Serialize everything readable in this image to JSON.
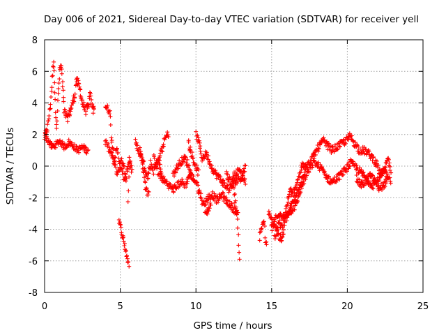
{
  "chart_data": {
    "type": "scatter",
    "title": "Day 006 of 2021, Sidereal Day-to-day VTEC variation (SDTVAR) for receiver yell",
    "xlabel": "GPS time / hours",
    "ylabel": "SDTVAR / TECUs",
    "xlim": [
      0,
      25
    ],
    "ylim": [
      -8,
      8
    ],
    "x_ticks": [
      "0",
      "5",
      "10",
      "15",
      "20",
      "25"
    ],
    "y_ticks": [
      "8",
      "6",
      "4",
      "2",
      "0",
      "-2",
      "-4",
      "-6",
      "-8"
    ],
    "grid": true,
    "marker": "+",
    "color": "#ff0000",
    "series": [
      {
        "name": "SDTVAR",
        "anchors": [
          [
            0.0,
            1.8
          ],
          [
            0.2,
            2.5
          ],
          [
            0.4,
            4.0
          ],
          [
            0.5,
            5.5
          ],
          [
            0.6,
            6.8
          ],
          [
            0.7,
            4.0
          ],
          [
            0.8,
            2.5
          ],
          [
            0.9,
            4.5
          ],
          [
            1.0,
            6.0
          ],
          [
            1.1,
            6.4
          ],
          [
            1.2,
            5.0
          ],
          [
            1.3,
            3.5
          ],
          [
            1.5,
            3.0
          ],
          [
            1.7,
            3.5
          ],
          [
            2.0,
            4.5
          ],
          [
            2.1,
            5.5
          ],
          [
            2.3,
            5.0
          ],
          [
            2.5,
            4.0
          ],
          [
            2.7,
            3.5
          ],
          [
            2.9,
            3.8
          ],
          [
            3.0,
            4.5
          ],
          [
            3.2,
            3.5
          ],
          [
            3.3,
            4.0
          ]
        ],
        "anchors_low": [
          [
            0.0,
            2.0
          ],
          [
            0.3,
            1.5
          ],
          [
            0.5,
            1.2
          ],
          [
            0.8,
            1.4
          ],
          [
            1.0,
            1.6
          ],
          [
            1.3,
            1.2
          ],
          [
            1.6,
            1.5
          ],
          [
            1.9,
            1.3
          ],
          [
            2.2,
            1.0
          ],
          [
            2.5,
            1.2
          ],
          [
            2.8,
            1.0
          ],
          [
            2.9,
            1.2
          ]
        ],
        "segments": [
          [
            [
              4.0,
              3.8
            ],
            [
              4.3,
              3.5
            ],
            [
              4.4,
              2.0
            ],
            [
              4.6,
              0.5
            ],
            [
              4.8,
              1.0
            ],
            [
              5.0,
              0.0
            ],
            [
              5.3,
              -1.0
            ],
            [
              5.6,
              0.5
            ],
            [
              5.8,
              -0.5
            ]
          ],
          [
            [
              4.0,
              1.5
            ],
            [
              4.3,
              1.0
            ],
            [
              4.5,
              0.5
            ],
            [
              4.8,
              -0.5
            ],
            [
              5.1,
              0.5
            ],
            [
              5.4,
              -1.0
            ]
          ],
          [
            [
              5.5,
              -2.2
            ],
            [
              5.6,
              0.0
            ],
            [
              5.7,
              0.8
            ]
          ],
          [
            [
              4.9,
              -3.5
            ],
            [
              5.1,
              -4.2
            ],
            [
              5.3,
              -5.0
            ],
            [
              5.5,
              -6.0
            ],
            [
              5.6,
              -6.3
            ]
          ],
          [
            [
              6.0,
              1.5
            ],
            [
              6.2,
              1.0
            ],
            [
              6.4,
              0.5
            ],
            [
              6.6,
              0.0
            ],
            [
              6.8,
              -0.8
            ],
            [
              7.0,
              0.2
            ],
            [
              7.2,
              -0.3
            ],
            [
              7.5,
              0.5
            ],
            [
              7.8,
              -1.0
            ]
          ],
          [
            [
              6.3,
              1.2
            ],
            [
              6.5,
              0.0
            ],
            [
              6.7,
              -1.5
            ],
            [
              6.9,
              -1.8
            ]
          ],
          [
            [
              7.2,
              0.5
            ],
            [
              7.4,
              0.0
            ],
            [
              7.6,
              0.5
            ],
            [
              7.8,
              1.2
            ],
            [
              8.0,
              1.8
            ],
            [
              8.2,
              2.1
            ]
          ],
          [
            [
              7.5,
              -0.5
            ],
            [
              8.0,
              -1.0
            ],
            [
              8.5,
              -1.5
            ],
            [
              9.0,
              -1.0
            ],
            [
              9.3,
              -1.2
            ],
            [
              9.6,
              -0.5
            ],
            [
              10.0,
              -1.0
            ],
            [
              10.3,
              -1.8
            ]
          ],
          [
            [
              8.5,
              -0.5
            ],
            [
              9.0,
              0.3
            ],
            [
              9.3,
              0.5
            ],
            [
              9.5,
              0.0
            ],
            [
              9.8,
              -0.8
            ]
          ],
          [
            [
              9.5,
              1.5
            ],
            [
              9.7,
              0.8
            ],
            [
              9.9,
              0.2
            ],
            [
              10.2,
              -0.5
            ]
          ],
          [
            [
              10.0,
              2.0
            ],
            [
              10.2,
              1.5
            ],
            [
              10.4,
              0.5
            ],
            [
              10.7,
              0.8
            ],
            [
              11.0,
              0.0
            ],
            [
              11.3,
              -0.5
            ],
            [
              11.6,
              -0.8
            ],
            [
              11.9,
              -1.2
            ],
            [
              12.2,
              -1.5
            ],
            [
              12.6,
              -1.0
            ],
            [
              13.0,
              -0.7
            ],
            [
              13.3,
              -1.0
            ]
          ],
          [
            [
              10.3,
              -1.8
            ],
            [
              10.5,
              -2.5
            ],
            [
              10.8,
              -2.0
            ],
            [
              11.1,
              -1.8
            ],
            [
              11.4,
              -2.2
            ],
            [
              11.7,
              -1.8
            ],
            [
              12.0,
              -2.2
            ],
            [
              12.3,
              -2.5
            ],
            [
              12.6,
              -2.8
            ],
            [
              12.8,
              -3.2
            ]
          ],
          [
            [
              10.6,
              -3.0
            ],
            [
              10.8,
              -2.8
            ],
            [
              11.0,
              -2.3
            ]
          ],
          [
            [
              12.0,
              -0.5
            ],
            [
              12.3,
              -1.0
            ],
            [
              12.6,
              -0.5
            ],
            [
              12.9,
              -0.2
            ],
            [
              13.1,
              -0.5
            ],
            [
              13.3,
              0.0
            ]
          ],
          [
            [
              12.5,
              -1.5
            ],
            [
              12.7,
              -3.0
            ],
            [
              12.8,
              -4.5
            ],
            [
              12.85,
              -5.5
            ],
            [
              12.9,
              -6.5
            ]
          ],
          [
            [
              14.2,
              -4.5
            ],
            [
              14.3,
              -4.0
            ],
            [
              14.5,
              -3.5
            ],
            [
              14.6,
              -4.8
            ],
            [
              14.7,
              -5.3
            ]
          ],
          [
            [
              14.8,
              -3.0
            ],
            [
              15.0,
              -3.5
            ],
            [
              15.3,
              -3.8
            ],
            [
              15.5,
              -4.5
            ],
            [
              15.7,
              -4.7
            ],
            [
              15.9,
              -3.5
            ],
            [
              16.1,
              -3.0
            ],
            [
              16.3,
              -2.5
            ],
            [
              16.6,
              -2.0
            ],
            [
              16.9,
              -1.0
            ],
            [
              17.2,
              -0.3
            ],
            [
              17.5,
              0.2
            ],
            [
              17.8,
              0.7
            ],
            [
              18.1,
              1.2
            ],
            [
              18.4,
              1.6
            ],
            [
              18.7,
              1.3
            ],
            [
              19.0,
              1.0
            ],
            [
              19.3,
              1.2
            ],
            [
              19.6,
              1.4
            ],
            [
              19.9,
              1.6
            ],
            [
              20.2,
              1.9
            ],
            [
              20.5,
              1.4
            ],
            [
              20.8,
              1.0
            ],
            [
              21.1,
              1.0
            ],
            [
              21.4,
              0.8
            ],
            [
              21.7,
              0.5
            ],
            [
              22.0,
              0.0
            ],
            [
              22.2,
              -0.5
            ],
            [
              22.4,
              -0.3
            ],
            [
              22.6,
              -0.6
            ],
            [
              22.8,
              -0.9
            ],
            [
              22.9,
              -1.0
            ]
          ],
          [
            [
              15.0,
              -4.0
            ],
            [
              15.4,
              -3.0
            ],
            [
              15.7,
              -3.3
            ],
            [
              16.0,
              -3.0
            ],
            [
              16.3,
              -2.8
            ],
            [
              16.6,
              -2.5
            ],
            [
              16.9,
              -1.5
            ],
            [
              17.2,
              -0.8
            ],
            [
              17.5,
              -0.2
            ],
            [
              17.8,
              0.3
            ],
            [
              18.1,
              0.0
            ],
            [
              18.4,
              -0.3
            ],
            [
              18.7,
              -0.8
            ],
            [
              19.0,
              -1.0
            ],
            [
              19.3,
              -0.8
            ],
            [
              19.6,
              -0.5
            ],
            [
              19.9,
              -0.2
            ],
            [
              20.2,
              0.2
            ],
            [
              20.5,
              0.0
            ],
            [
              20.8,
              -0.3
            ],
            [
              21.1,
              -0.6
            ],
            [
              21.4,
              -1.0
            ],
            [
              21.7,
              -1.2
            ],
            [
              22.0,
              -0.9
            ],
            [
              22.3,
              -0.5
            ],
            [
              22.5,
              -0.2
            ],
            [
              22.7,
              0.5
            ],
            [
              22.9,
              -0.5
            ]
          ],
          [
            [
              15.2,
              -4.5
            ],
            [
              15.5,
              -3.5
            ],
            [
              15.7,
              -4.0
            ],
            [
              16.0,
              -2.5
            ],
            [
              16.2,
              -1.5
            ],
            [
              16.4,
              -1.8
            ],
            [
              16.7,
              -1.2
            ],
            [
              17.0,
              0.0
            ],
            [
              17.3,
              0.3
            ]
          ],
          [
            [
              20.6,
              -0.8
            ],
            [
              20.9,
              -1.2
            ],
            [
              21.2,
              -1.0
            ],
            [
              21.5,
              -0.6
            ],
            [
              21.8,
              -0.9
            ],
            [
              22.1,
              -1.4
            ],
            [
              22.4,
              -1.2
            ],
            [
              22.7,
              -0.8
            ]
          ]
        ]
      }
    ]
  }
}
